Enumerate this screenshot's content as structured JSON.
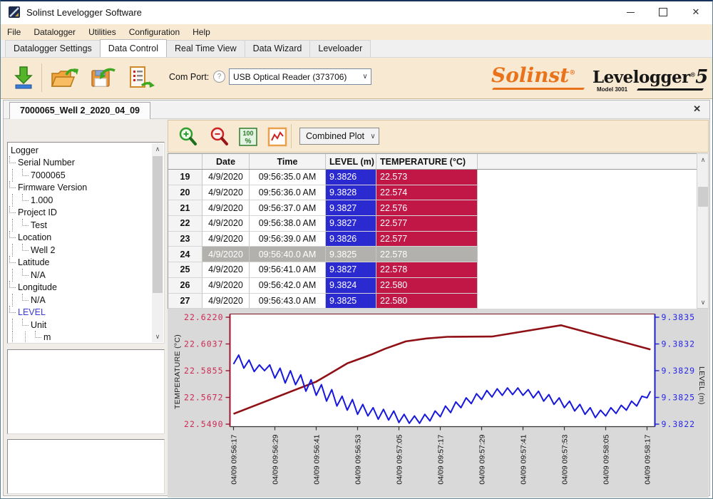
{
  "window": {
    "title": "Solinst Levelogger Software",
    "close_glyph": "✕"
  },
  "icons": {
    "dropdown_chevron": "∨",
    "scroll_up": "∧",
    "scroll_down": "∨",
    "help_glyph": "?",
    "file_tab_close": "✕"
  },
  "menu": {
    "items": [
      "File",
      "Datalogger",
      "Utilities",
      "Configuration",
      "Help"
    ]
  },
  "tabs": {
    "items": [
      {
        "label": "Datalogger Settings",
        "active": false
      },
      {
        "label": "Data Control",
        "active": true
      },
      {
        "label": "Real Time View",
        "active": false
      },
      {
        "label": "Data Wizard",
        "active": false
      },
      {
        "label": "Leveloader",
        "active": false
      }
    ]
  },
  "toolbar": {
    "com_port_label": "Com Port:",
    "com_port_value": "USB Optical Reader (373706)",
    "icon_names": [
      "read-data-icon",
      "open-file-icon",
      "save-data-icon",
      "export-data-icon"
    ]
  },
  "logo": {
    "brand": "Solinst",
    "brand_reg": "®",
    "product": "Levelogger",
    "product_reg": "®",
    "product_version": "5",
    "model": "Model 3001"
  },
  "file_tab": {
    "label": "7000065_Well 2_2020_04_09"
  },
  "tree": {
    "items": [
      {
        "label": "Logger",
        "depth": 0
      },
      {
        "label": "Serial Number",
        "depth": 1
      },
      {
        "label": "7000065",
        "depth": 2
      },
      {
        "label": "Firmware Version",
        "depth": 1
      },
      {
        "label": "1.000",
        "depth": 2
      },
      {
        "label": "Project ID",
        "depth": 1
      },
      {
        "label": "Test",
        "depth": 2
      },
      {
        "label": "Location",
        "depth": 1
      },
      {
        "label": "Well 2",
        "depth": 2
      },
      {
        "label": "Latitude",
        "depth": 1
      },
      {
        "label": "N/A",
        "depth": 2
      },
      {
        "label": "Longitude",
        "depth": 1
      },
      {
        "label": "N/A",
        "depth": 2
      },
      {
        "label": "LEVEL",
        "depth": 1,
        "highlight": true
      },
      {
        "label": "Unit",
        "depth": 2
      },
      {
        "label": "m",
        "depth": 3
      },
      {
        "label": "",
        "depth": 3
      }
    ]
  },
  "plot_toolbar": {
    "plot_type_value": "Combined Plot",
    "icon_names": [
      "zoom-in-icon",
      "zoom-out-icon",
      "zoom-100-icon",
      "line-chart-icon"
    ]
  },
  "table": {
    "headers": [
      "",
      "Date",
      "Time",
      "LEVEL (m)",
      "TEMPERATURE (°C)"
    ],
    "rows": [
      {
        "num": "19",
        "date": "4/9/2020",
        "time": "09:56:35.0 AM",
        "level": "9.3826",
        "temp": "22.573",
        "selected": false
      },
      {
        "num": "20",
        "date": "4/9/2020",
        "time": "09:56:36.0 AM",
        "level": "9.3828",
        "temp": "22.574",
        "selected": false
      },
      {
        "num": "21",
        "date": "4/9/2020",
        "time": "09:56:37.0 AM",
        "level": "9.3827",
        "temp": "22.576",
        "selected": false
      },
      {
        "num": "22",
        "date": "4/9/2020",
        "time": "09:56:38.0 AM",
        "level": "9.3827",
        "temp": "22.577",
        "selected": false
      },
      {
        "num": "23",
        "date": "4/9/2020",
        "time": "09:56:39.0 AM",
        "level": "9.3826",
        "temp": "22.577",
        "selected": false
      },
      {
        "num": "24",
        "date": "4/9/2020",
        "time": "09:56:40.0 AM",
        "level": "9.3825",
        "temp": "22.578",
        "selected": true
      },
      {
        "num": "25",
        "date": "4/9/2020",
        "time": "09:56:41.0 AM",
        "level": "9.3827",
        "temp": "22.578",
        "selected": false
      },
      {
        "num": "26",
        "date": "4/9/2020",
        "time": "09:56:42.0 AM",
        "level": "9.3824",
        "temp": "22.580",
        "selected": false
      },
      {
        "num": "27",
        "date": "4/9/2020",
        "time": "09:56:43.0 AM",
        "level": "9.3825",
        "temp": "22.580",
        "selected": false
      }
    ]
  },
  "chart_data": {
    "type": "line",
    "title": "",
    "grid": false,
    "legend": "none",
    "x_axis": {
      "label": "",
      "tick_seconds": [
        0,
        12,
        24,
        36,
        48,
        60,
        72,
        84,
        96,
        108,
        120
      ],
      "tick_labels": [
        "04/09 09:56:17",
        "04/09 09:56:29",
        "04/09 09:56:41",
        "04/09 09:56:53",
        "04/09 09:57:05",
        "04/09 09:57:17",
        "04/09 09:57:29",
        "04/09 09:57:41",
        "04/09 09:57:53",
        "04/09 09:58:05",
        "04/09 09:58:17"
      ]
    },
    "y_left": {
      "label": "TEMPERATURE (°C)",
      "tick_labels": [
        "22.6220",
        "22.6037",
        "22.5855",
        "22.5672",
        "22.5490"
      ],
      "range": [
        22.549,
        22.622
      ],
      "color": "#cc2b55"
    },
    "y_right": {
      "label": "LEVEL (m)",
      "tick_labels": [
        "9.3835",
        "9.3832",
        "9.3829",
        "9.3825",
        "9.3822"
      ],
      "range": [
        9.3822,
        9.3835
      ],
      "color": "#2727e8"
    },
    "series": [
      {
        "name": "TEMPERATURE",
        "axis": "left",
        "color": "#8f1015",
        "points": [
          [
            0,
            22.556
          ],
          [
            6,
            22.5615
          ],
          [
            12,
            22.567
          ],
          [
            18,
            22.5725
          ],
          [
            24,
            22.578
          ],
          [
            28,
            22.5835
          ],
          [
            33,
            22.5905
          ],
          [
            40,
            22.5965
          ],
          [
            44,
            22.6005
          ],
          [
            50,
            22.6055
          ],
          [
            56,
            22.6075
          ],
          [
            62,
            22.6086
          ],
          [
            75,
            22.6088
          ],
          [
            95,
            22.6165
          ],
          [
            121,
            22.6
          ]
        ]
      },
      {
        "name": "LEVEL",
        "axis": "right",
        "color": "#1717dd",
        "points": [
          [
            0,
            9.38293
          ],
          [
            1.5,
            9.38304
          ],
          [
            3,
            9.38288
          ],
          [
            4.5,
            9.38298
          ],
          [
            6,
            9.38284
          ],
          [
            7.5,
            9.38292
          ],
          [
            9,
            9.38285
          ],
          [
            10.5,
            9.38292
          ],
          [
            12,
            9.38276
          ],
          [
            13.5,
            9.38288
          ],
          [
            15,
            9.3827
          ],
          [
            16.5,
            9.38285
          ],
          [
            18,
            9.38268
          ],
          [
            19.5,
            9.3828
          ],
          [
            21,
            9.3826
          ],
          [
            22.5,
            9.38274
          ],
          [
            24,
            9.38255
          ],
          [
            25.5,
            9.38268
          ],
          [
            27,
            9.38248
          ],
          [
            28.5,
            9.38262
          ],
          [
            30,
            9.38242
          ],
          [
            31.5,
            9.38254
          ],
          [
            33,
            9.38237
          ],
          [
            34.5,
            9.3825
          ],
          [
            36,
            9.38232
          ],
          [
            37.5,
            9.38244
          ],
          [
            39,
            9.3823
          ],
          [
            40.5,
            9.3824
          ],
          [
            42,
            9.38226
          ],
          [
            43.5,
            9.38238
          ],
          [
            45,
            9.38225
          ],
          [
            46.5,
            9.38236
          ],
          [
            48,
            9.38222
          ],
          [
            49.5,
            9.38232
          ],
          [
            51,
            9.38221
          ],
          [
            52.5,
            9.3823
          ],
          [
            54,
            9.38221
          ],
          [
            55.5,
            9.38232
          ],
          [
            57,
            9.38224
          ],
          [
            58.5,
            9.38236
          ],
          [
            60,
            9.38229
          ],
          [
            61.5,
            9.38242
          ],
          [
            63,
            9.38234
          ],
          [
            64.5,
            9.38247
          ],
          [
            66,
            9.3824
          ],
          [
            67.5,
            9.38252
          ],
          [
            69,
            9.38245
          ],
          [
            70.5,
            9.38257
          ],
          [
            72,
            9.3825
          ],
          [
            73.5,
            9.38261
          ],
          [
            75,
            9.38253
          ],
          [
            76.5,
            9.38263
          ],
          [
            78,
            9.38255
          ],
          [
            79.5,
            9.38264
          ],
          [
            81,
            9.38256
          ],
          [
            82.5,
            9.38264
          ],
          [
            84,
            9.38255
          ],
          [
            85.5,
            9.38262
          ],
          [
            87,
            9.38252
          ],
          [
            88.5,
            9.3826
          ],
          [
            90,
            9.38248
          ],
          [
            91.5,
            9.38256
          ],
          [
            93,
            9.38244
          ],
          [
            94.5,
            9.38252
          ],
          [
            96,
            9.3824
          ],
          [
            97.5,
            9.38248
          ],
          [
            99,
            9.38236
          ],
          [
            100.5,
            9.38244
          ],
          [
            102,
            9.38232
          ],
          [
            103.5,
            9.3824
          ],
          [
            105,
            9.38228
          ],
          [
            106.5,
            9.38237
          ],
          [
            108,
            9.3823
          ],
          [
            109.5,
            9.3824
          ],
          [
            111,
            9.38233
          ],
          [
            112.5,
            9.38243
          ],
          [
            114,
            9.38237
          ],
          [
            115.5,
            9.38248
          ],
          [
            117,
            9.38242
          ],
          [
            118.5,
            9.38254
          ],
          [
            120,
            9.38252
          ],
          [
            121,
            9.3826
          ]
        ]
      }
    ]
  }
}
